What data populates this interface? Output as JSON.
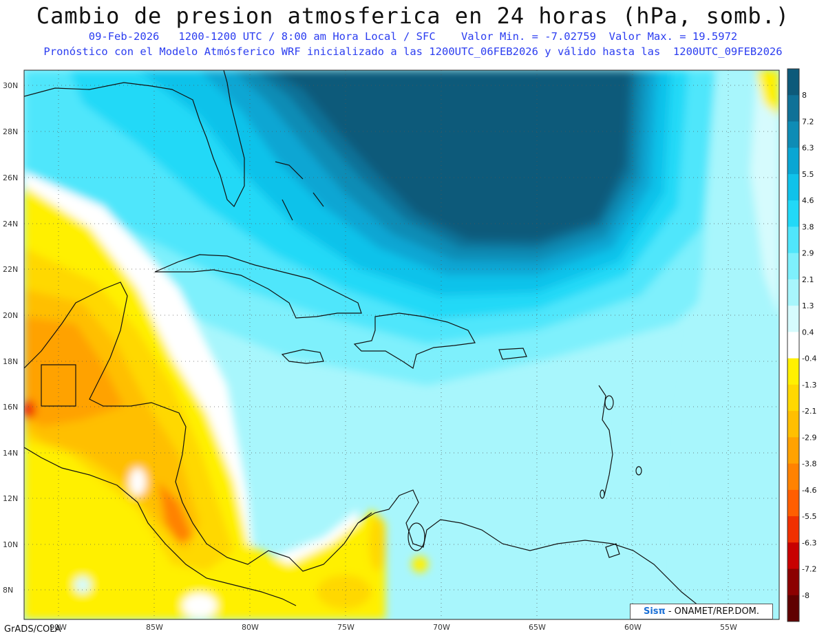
{
  "title": "Cambio de presion atmosferica en 24 horas (hPa, somb.)",
  "subtitle_1": "09-Feb-2026   1200-1200 UTC / 8:00 am Hora Local / SFC    Valor Min. = -7.02759  Valor Max. = 19.5972",
  "subtitle_2": "Pronóstico con el Modelo Atmósferico WRF inicializado a las 1200UTC_06FEB2026 y válido hasta las  1200UTC_09FEB2026",
  "credit": "GrADS/COLA",
  "logo": {
    "mark": "Sisπ",
    "text": "- ONAMET/REP.DOM."
  },
  "axes": {
    "lat_labels": [
      "30N",
      "28N",
      "26N",
      "24N",
      "22N",
      "20N",
      "18N",
      "16N",
      "14N",
      "12N",
      "10N",
      "8N"
    ],
    "lon_labels": [
      "90W",
      "85W",
      "80W",
      "75W",
      "70W",
      "65W",
      "60W",
      "55W"
    ]
  },
  "colorbar": {
    "labels": [
      "8",
      "7.2",
      "6.3",
      "5.5",
      "4.6",
      "3.8",
      "2.9",
      "2.1",
      "1.3",
      "0.4",
      "-0.4",
      "-1.3",
      "-2.1",
      "-2.9",
      "-3.8",
      "-4.6",
      "-5.5",
      "-6.3",
      "-7.2",
      "-8"
    ],
    "colors": [
      "#0d5a7a",
      "#0f7197",
      "#0e8cb5",
      "#0aa6d3",
      "#10c2ea",
      "#22d9f7",
      "#50e6fb",
      "#7ef0fc",
      "#a8f6fc",
      "#d6fbfd",
      "#ffffff",
      "#fff000",
      "#ffd800",
      "#ffbf00",
      "#ffa200",
      "#ff8200",
      "#ff5e00",
      "#f03000",
      "#c80000",
      "#8c0000",
      "#600000"
    ]
  }
}
